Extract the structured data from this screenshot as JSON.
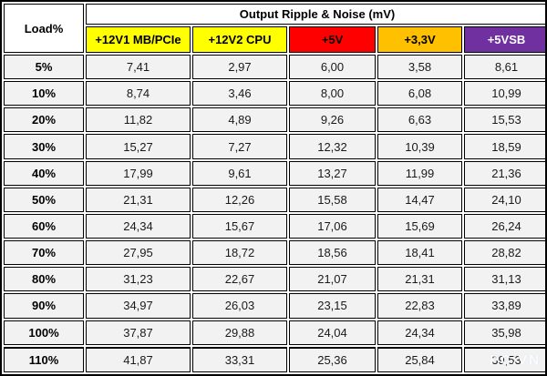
{
  "table": {
    "corner_label": "Load%",
    "title": "Output Ripple & Noise (mV)",
    "columns": [
      {
        "label": "+12V1 MB/PCIe",
        "bg": "#ffff00",
        "fg": "#000000"
      },
      {
        "label": "+12V2 CPU",
        "bg": "#ffff00",
        "fg": "#000000"
      },
      {
        "label": "+5V",
        "bg": "#ff0000",
        "fg": "#000000"
      },
      {
        "label": "+3,3V",
        "bg": "#ffc000",
        "fg": "#000000"
      },
      {
        "label": "+5VSB",
        "bg": "#7030a0",
        "fg": "#ffffff"
      }
    ],
    "rows": [
      {
        "load": "5%",
        "values": [
          "7,41",
          "2,97",
          "6,00",
          "3,58",
          "8,61"
        ]
      },
      {
        "load": "10%",
        "values": [
          "8,74",
          "3,46",
          "8,00",
          "6,08",
          "10,99"
        ]
      },
      {
        "load": "20%",
        "values": [
          "11,82",
          "4,89",
          "9,26",
          "6,63",
          "15,53"
        ]
      },
      {
        "load": "30%",
        "values": [
          "15,27",
          "7,27",
          "12,32",
          "10,39",
          "18,59"
        ]
      },
      {
        "load": "40%",
        "values": [
          "17,99",
          "9,61",
          "13,27",
          "11,99",
          "21,36"
        ]
      },
      {
        "load": "50%",
        "values": [
          "21,31",
          "12,26",
          "15,58",
          "14,47",
          "24,10"
        ]
      },
      {
        "load": "60%",
        "values": [
          "24,34",
          "15,67",
          "17,06",
          "15,69",
          "26,24"
        ]
      },
      {
        "load": "70%",
        "values": [
          "27,95",
          "18,72",
          "18,56",
          "18,41",
          "28,82"
        ]
      },
      {
        "load": "80%",
        "values": [
          "31,23",
          "22,67",
          "21,07",
          "21,31",
          "31,13"
        ]
      },
      {
        "load": "90%",
        "values": [
          "34,97",
          "26,03",
          "23,15",
          "22,83",
          "33,89"
        ]
      },
      {
        "load": "100%",
        "values": [
          "37,87",
          "29,88",
          "24,04",
          "24,34",
          "35,98"
        ]
      },
      {
        "load": "110%",
        "values": [
          "41,87",
          "33,31",
          "25,36",
          "25,84",
          "39,53"
        ]
      }
    ]
  },
  "watermark": "PC.VN",
  "colors": {
    "rail_12v": "#ffff00",
    "rail_5v": "#ff0000",
    "rail_3v3": "#ffc000",
    "rail_5vsb": "#7030a0",
    "row_fill": "#f2f2f2",
    "border": "#000000"
  },
  "chart_data": {
    "type": "table",
    "title": "Output Ripple & Noise (mV)",
    "row_header": "Load%",
    "columns": [
      "+12V1 MB/PCIe",
      "+12V2 CPU",
      "+5V",
      "+3,3V",
      "+5VSB"
    ],
    "loads": [
      "5%",
      "10%",
      "20%",
      "30%",
      "40%",
      "50%",
      "60%",
      "70%",
      "80%",
      "90%",
      "100%",
      "110%"
    ],
    "values_mV": [
      [
        7.41,
        2.97,
        6.0,
        3.58,
        8.61
      ],
      [
        8.74,
        3.46,
        8.0,
        6.08,
        10.99
      ],
      [
        11.82,
        4.89,
        9.26,
        6.63,
        15.53
      ],
      [
        15.27,
        7.27,
        12.32,
        10.39,
        18.59
      ],
      [
        17.99,
        9.61,
        13.27,
        11.99,
        21.36
      ],
      [
        21.31,
        12.26,
        15.58,
        14.47,
        24.1
      ],
      [
        24.34,
        15.67,
        17.06,
        15.69,
        26.24
      ],
      [
        27.95,
        18.72,
        18.56,
        18.41,
        28.82
      ],
      [
        31.23,
        22.67,
        21.07,
        21.31,
        31.13
      ],
      [
        34.97,
        26.03,
        23.15,
        22.83,
        33.89
      ],
      [
        37.87,
        29.88,
        24.04,
        24.34,
        35.98
      ],
      [
        41.87,
        33.31,
        25.36,
        25.84,
        39.53
      ]
    ]
  }
}
